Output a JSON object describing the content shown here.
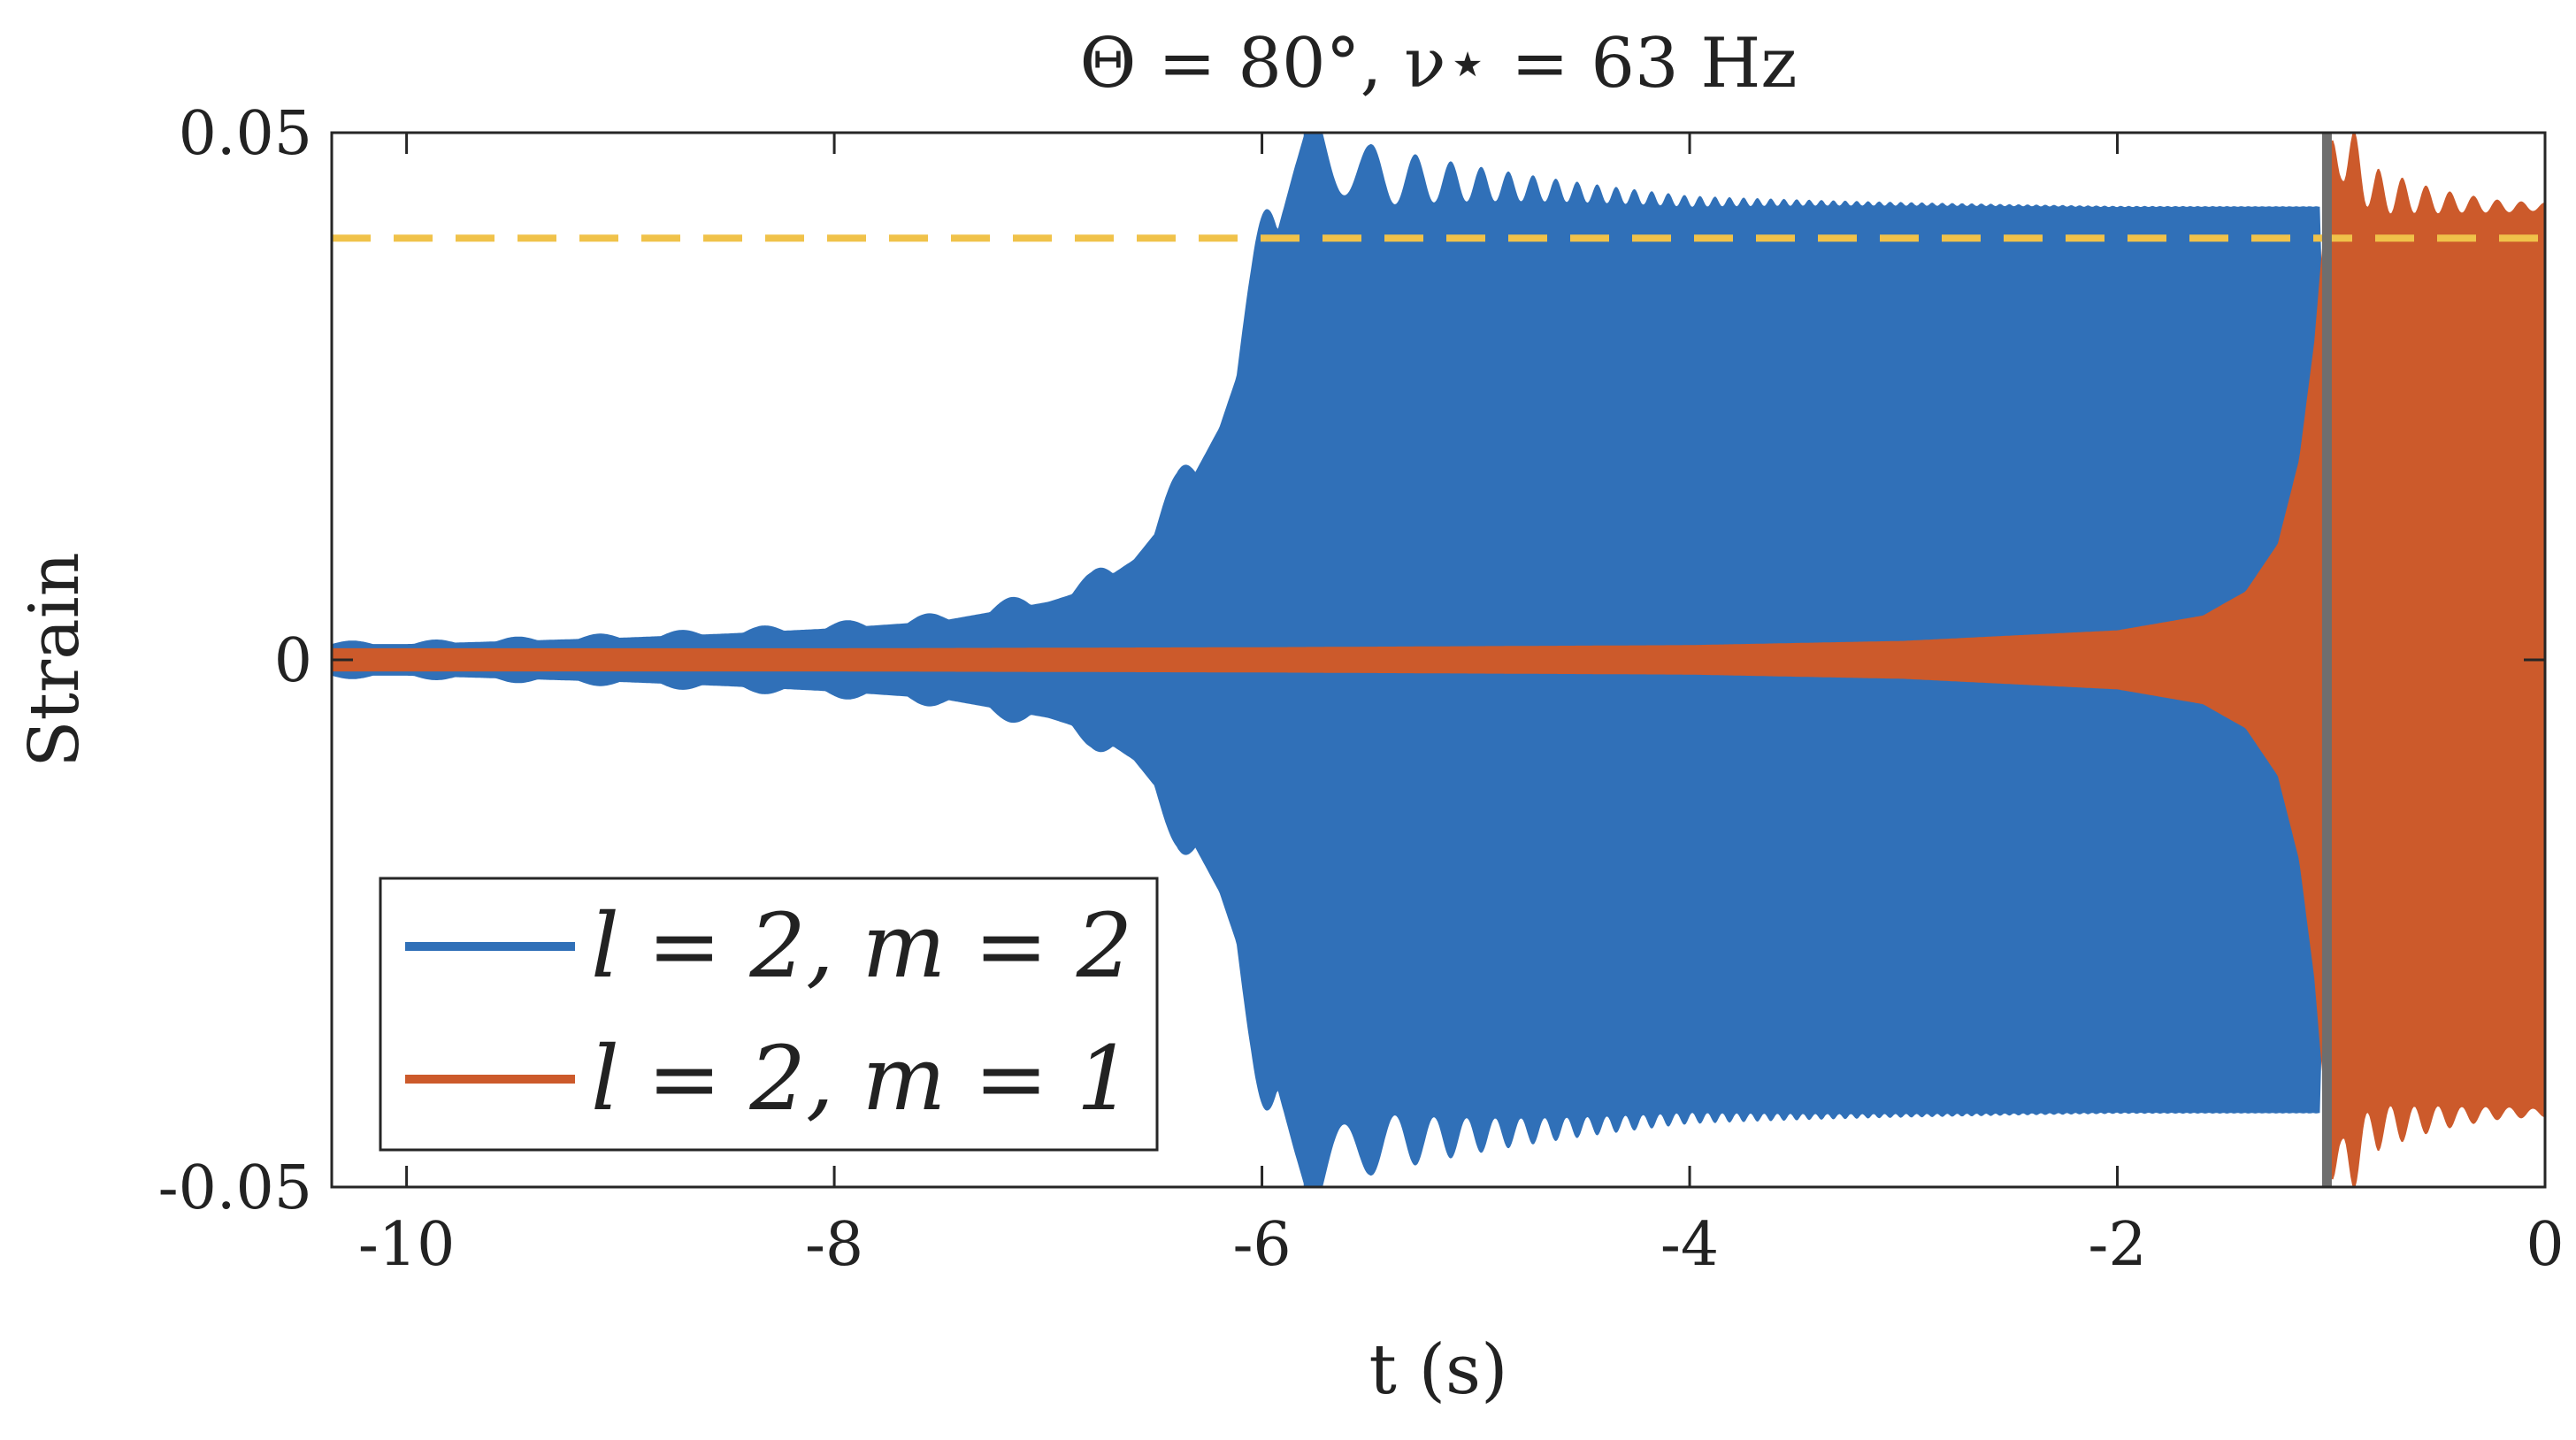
{
  "chart_data": {
    "type": "line",
    "title": "Θ = 80°,   ν⋆ = 63 Hz",
    "xlabel": "t (s)",
    "ylabel": "Strain",
    "xlim": [
      -10.35,
      0
    ],
    "ylim": [
      -0.05,
      0.05
    ],
    "x_ticks": [
      -10,
      -8,
      -6,
      -4,
      -2,
      0
    ],
    "x_tick_labels": [
      "-10",
      "-8",
      "-6",
      "-4",
      "-2",
      "0"
    ],
    "y_ticks": [
      -0.05,
      0,
      0.05
    ],
    "y_tick_labels": [
      "-0.05",
      "0",
      "0.05"
    ],
    "grid": false,
    "legend_position": "bottom-left",
    "series": [
      {
        "name": "l = 2, m = 2",
        "color": "#3070b8",
        "envelope": {
          "t": [
            -10.35,
            -10.0,
            -9.5,
            -9.0,
            -8.5,
            -8.0,
            -7.5,
            -7.0,
            -6.8,
            -6.6,
            -6.4,
            -6.2,
            -6.05,
            -5.95,
            -5.85,
            -5.8,
            -5.5,
            -4.0,
            -2.0,
            -1.05,
            -1.02
          ],
          "amplitude": [
            0.0015,
            0.0015,
            0.0018,
            0.0021,
            0.0025,
            0.003,
            0.0037,
            0.0055,
            0.0068,
            0.0095,
            0.0145,
            0.022,
            0.031,
            0.039,
            0.0465,
            0.05,
            0.046,
            0.0435,
            0.043,
            0.043,
            0.0
          ]
        }
      },
      {
        "name": "l = 2, m = 1",
        "color": "#cc5a2b",
        "envelope": {
          "t": [
            -10.35,
            -8.0,
            -6.0,
            -4.0,
            -3.0,
            -2.0,
            -1.6,
            -1.4,
            -1.25,
            -1.15,
            -1.08,
            -1.03,
            -1.0,
            -0.95,
            -0.8,
            -0.5,
            -0.2,
            0.0
          ],
          "amplitude": [
            0.0011,
            0.0011,
            0.0012,
            0.0014,
            0.0018,
            0.0028,
            0.0042,
            0.0065,
            0.011,
            0.019,
            0.03,
            0.042,
            0.0455,
            0.049,
            0.0445,
            0.0435,
            0.043,
            0.043
          ]
        }
      }
    ],
    "reference_lines": [
      {
        "orientation": "horizontal",
        "value": 0.04,
        "style": "dashed",
        "color": "#f0c24a"
      },
      {
        "orientation": "vertical",
        "value": -1.02,
        "style": "solid",
        "color": "#6e6e6e"
      }
    ]
  }
}
